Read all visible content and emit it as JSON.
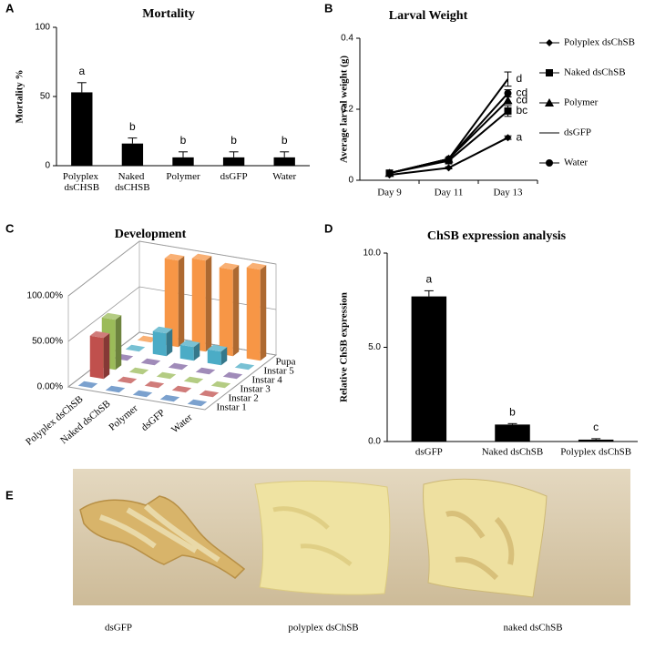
{
  "chart_data": [
    {
      "panel": "A",
      "type": "bar",
      "title": "Mortality",
      "y_label": "Mortality %",
      "categories": [
        "Polyplex dsCHSB",
        "Naked dsCHSB",
        "Polymer",
        "dsGFP",
        "Water"
      ],
      "values": [
        53,
        16,
        6,
        6,
        6
      ],
      "errors": [
        7,
        4,
        4,
        4,
        4
      ],
      "annotations": [
        "a",
        "b",
        "b",
        "b",
        "b"
      ],
      "color": "#000000",
      "ylim": [
        0,
        100
      ],
      "yticks": [
        0,
        50,
        100
      ]
    },
    {
      "panel": "B",
      "type": "line",
      "title": "Larval Weight",
      "y_label": "Average larval weight (g)",
      "categories": [
        "Day 9",
        "Day 11",
        "Day 13"
      ],
      "ylim": [
        0,
        0.4
      ],
      "yticks": [
        0,
        0.2,
        0.4
      ],
      "series": [
        {
          "name": "Polyplex dsChSB",
          "marker": "diamond",
          "color": "#000000",
          "values": [
            0.015,
            0.035,
            0.12
          ],
          "errors": [
            0.002,
            0.003,
            0.005
          ],
          "annotation": "a"
        },
        {
          "name": "Naked dsChSB",
          "marker": "square",
          "color": "#000000",
          "values": [
            0.02,
            0.055,
            0.195
          ],
          "errors": [
            0.003,
            0.004,
            0.015
          ],
          "annotation": "bc"
        },
        {
          "name": "Polymer",
          "marker": "triangle",
          "color": "#000000",
          "values": [
            0.02,
            0.06,
            0.225
          ],
          "errors": [
            0.003,
            0.004,
            0.01
          ],
          "annotation": "cd"
        },
        {
          "name": "dsGFP",
          "marker": "none",
          "color": "#000000",
          "values": [
            0.02,
            0.06,
            0.285
          ],
          "errors": [
            0.003,
            0.004,
            0.02
          ],
          "annotation": "d"
        },
        {
          "name": "Water",
          "marker": "circle",
          "color": "#000000",
          "values": [
            0.02,
            0.06,
            0.245
          ],
          "errors": [
            0.003,
            0.004,
            0.01
          ],
          "annotation": "cd"
        }
      ]
    },
    {
      "panel": "C",
      "type": "bar3d",
      "title": "Development",
      "categories": [
        "Polyplex dsChSB",
        "Naked dsChSB",
        "Polymer",
        "dsGFP",
        "Water"
      ],
      "zlim": [
        0,
        100
      ],
      "zticks": [
        {
          "value": 0,
          "label": "0.00%"
        },
        {
          "value": 50,
          "label": "50.00%"
        },
        {
          "value": 100,
          "label": "100.00%"
        }
      ],
      "series": [
        {
          "name": "Instar 1",
          "color": "#4f81bd",
          "values": [
            0,
            0,
            0,
            0,
            0
          ]
        },
        {
          "name": "Instar 2",
          "color": "#c0504d",
          "values": [
            45,
            0,
            0,
            0,
            0
          ]
        },
        {
          "name": "Instar 3",
          "color": "#9bbb59",
          "values": [
            55,
            0,
            0,
            0,
            0
          ]
        },
        {
          "name": "Instar 4",
          "color": "#8064a2",
          "values": [
            0,
            0,
            0,
            0,
            0
          ]
        },
        {
          "name": "Instar 5",
          "color": "#4bacc6",
          "values": [
            0,
            25,
            15,
            15,
            0
          ]
        },
        {
          "name": "Pupa",
          "color": "#f79646",
          "values": [
            0,
            95,
            100,
            95,
            100
          ]
        }
      ]
    },
    {
      "panel": "D",
      "type": "bar",
      "title": "ChSB expression analysis",
      "y_label": "Relative ChSB expression",
      "categories": [
        "dsGFP",
        "Naked dsChSB",
        "Polyplex dsChSB"
      ],
      "values": [
        7.7,
        0.9,
        0.1
      ],
      "errors": [
        0.3,
        0.05,
        0.05
      ],
      "annotations": [
        "a",
        "b",
        "c"
      ],
      "color": "#000000",
      "ylim": [
        0,
        10
      ],
      "yticks": [
        {
          "value": 0,
          "label": "0.0"
        },
        {
          "value": 5,
          "label": "5.0"
        },
        {
          "value": 10,
          "label": "10.0"
        }
      ]
    }
  ],
  "photo_panel": {
    "panel": "E",
    "captions": [
      "dsGFP",
      "polyplex dsChSB",
      "naked dsChSB"
    ]
  }
}
